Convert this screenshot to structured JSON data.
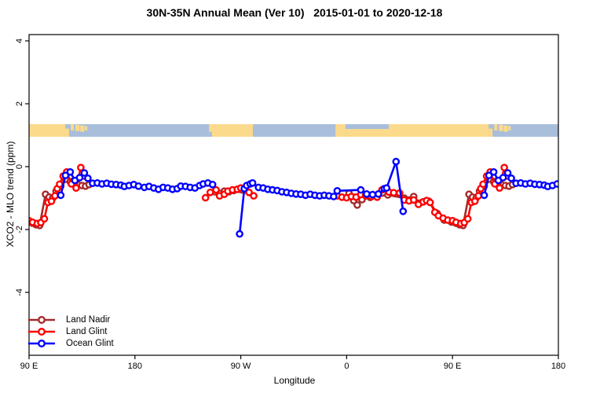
{
  "chart_data": {
    "type": "line",
    "title": "30N-35N Annual Mean (Ver 10)   2015-01-01 to 2020-12-18",
    "xlabel": "Longitude",
    "ylabel": "XCO2 - MLO trend (ppm)",
    "x_axis": {
      "min": 90,
      "max": 540,
      "note": "unwrapped longitude axis in degrees east; the 450-540 span repeats 90E-180",
      "ticks": [
        {
          "t": 90,
          "label": "90 E"
        },
        {
          "t": 180,
          "label": "180"
        },
        {
          "t": 270,
          "label": "90 W"
        },
        {
          "t": 360,
          "label": "0"
        },
        {
          "t": 450,
          "label": "90 E"
        },
        {
          "t": 540,
          "label": "180"
        }
      ]
    },
    "y_axis": {
      "min": -6.0,
      "max": 4.2,
      "ticks": [
        -4,
        -2,
        0,
        2,
        4
      ]
    },
    "grid": false,
    "legend_position": "bottom-left-inside",
    "series": [
      {
        "name": "Land Nadir",
        "color": "#A52A2A",
        "marker": "open-circle",
        "segments": [
          [
            [
              90,
              -1.75
            ],
            [
              93,
              -1.8
            ],
            [
              96,
              -1.85
            ],
            [
              99,
              -1.87
            ],
            [
              104,
              -0.88
            ],
            [
              107,
              -0.97
            ],
            [
              110,
              -1.0
            ],
            [
              113,
              -0.78
            ],
            [
              117,
              -0.62
            ],
            [
              121,
              -0.4
            ],
            [
              125,
              -0.48
            ],
            [
              128,
              -0.45
            ],
            [
              131,
              -0.55
            ],
            [
              135,
              -0.6
            ],
            [
              138,
              -0.62
            ],
            [
              141,
              -0.57
            ]
          ],
          [
            [
              248,
              -0.8
            ],
            [
              252,
              -0.85
            ],
            [
              256,
              -0.78
            ],
            [
              260,
              -0.8
            ],
            [
              264,
              -0.76
            ],
            [
              268,
              -0.72
            ],
            [
              271,
              -0.74
            ]
          ],
          [
            [
              362,
              -0.85
            ],
            [
              366,
              -1.08
            ],
            [
              369,
              -1.22
            ],
            [
              373,
              -1.05
            ],
            [
              380,
              -0.98
            ],
            [
              395,
              -0.9
            ],
            [
              409,
              -1.0
            ],
            [
              417,
              -0.95
            ],
            [
              422,
              -1.16
            ],
            [
              430,
              -1.1
            ],
            [
              437,
              -1.49
            ],
            [
              443,
              -1.7
            ],
            [
              449,
              -1.76
            ],
            [
              453,
              -1.8
            ],
            [
              456,
              -1.85
            ],
            [
              459,
              -1.87
            ],
            [
              464,
              -0.88
            ],
            [
              467,
              -0.97
            ],
            [
              470,
              -1.0
            ],
            [
              473,
              -0.78
            ],
            [
              477,
              -0.62
            ],
            [
              481,
              -0.4
            ],
            [
              485,
              -0.48
            ],
            [
              488,
              -0.45
            ],
            [
              491,
              -0.55
            ],
            [
              495,
              -0.6
            ],
            [
              498,
              -0.62
            ],
            [
              501,
              -0.57
            ]
          ]
        ]
      },
      {
        "name": "Land Glint",
        "color": "#FF0000",
        "marker": "open-circle",
        "segments": [
          [
            [
              90,
              -1.72
            ],
            [
              93,
              -1.77
            ],
            [
              97,
              -1.81
            ],
            [
              100,
              -1.78
            ],
            [
              103,
              -1.66
            ],
            [
              106,
              -1.14
            ],
            [
              109,
              -1.1
            ],
            [
              112,
              -0.93
            ],
            [
              114,
              -0.7
            ],
            [
              116,
              -0.56
            ],
            [
              119,
              -0.3
            ],
            [
              122,
              -0.17
            ],
            [
              126,
              -0.55
            ],
            [
              130,
              -0.68
            ],
            [
              134,
              -0.03
            ],
            [
              137,
              -0.3
            ]
          ],
          [
            [
              240,
              -0.99
            ],
            [
              244,
              -0.82
            ],
            [
              249,
              -0.74
            ],
            [
              252,
              -0.93
            ],
            [
              256,
              -0.88
            ],
            [
              259,
              -0.78
            ],
            [
              263,
              -0.74
            ],
            [
              267,
              -0.72
            ],
            [
              270,
              -0.68
            ],
            [
              274,
              -0.74
            ],
            [
              277,
              -0.82
            ],
            [
              281,
              -0.93
            ]
          ],
          [
            [
              352,
              -0.93
            ],
            [
              356,
              -0.97
            ],
            [
              360,
              -0.99
            ],
            [
              364,
              -0.95
            ],
            [
              368,
              -0.97
            ],
            [
              372,
              -0.89
            ],
            [
              376,
              -0.92
            ],
            [
              381,
              -0.95
            ],
            [
              386,
              -0.97
            ],
            [
              390,
              -0.74
            ],
            [
              396,
              -0.81
            ],
            [
              400,
              -0.83
            ],
            [
              405,
              -0.84
            ],
            [
              409,
              -1.06
            ],
            [
              413,
              -1.09
            ],
            [
              417,
              -1.06
            ],
            [
              421,
              -1.2
            ],
            [
              425,
              -1.12
            ],
            [
              428,
              -1.08
            ],
            [
              431,
              -1.14
            ],
            [
              435,
              -1.45
            ],
            [
              438,
              -1.56
            ],
            [
              442,
              -1.64
            ],
            [
              446,
              -1.7
            ],
            [
              450,
              -1.72
            ],
            [
              453,
              -1.77
            ],
            [
              457,
              -1.81
            ],
            [
              460,
              -1.78
            ],
            [
              463,
              -1.66
            ],
            [
              466,
              -1.14
            ],
            [
              469,
              -1.1
            ],
            [
              472,
              -0.93
            ],
            [
              474,
              -0.7
            ],
            [
              476,
              -0.56
            ],
            [
              479,
              -0.3
            ],
            [
              482,
              -0.17
            ],
            [
              486,
              -0.55
            ],
            [
              490,
              -0.68
            ],
            [
              494,
              -0.03
            ],
            [
              497,
              -0.3
            ]
          ]
        ]
      },
      {
        "name": "Ocean Glint",
        "color": "#0000FF",
        "marker": "open-circle",
        "segments": [
          [
            [
              117,
              -0.91
            ],
            [
              121,
              -0.28
            ],
            [
              125,
              -0.17
            ],
            [
              129,
              -0.44
            ],
            [
              133,
              -0.35
            ],
            [
              137,
              -0.2
            ],
            [
              140,
              -0.37
            ],
            [
              144,
              -0.53
            ],
            [
              148,
              -0.52
            ],
            [
              152,
              -0.55
            ],
            [
              156,
              -0.53
            ],
            [
              160,
              -0.56
            ],
            [
              164,
              -0.57
            ],
            [
              168,
              -0.59
            ],
            [
              171,
              -0.63
            ],
            [
              175,
              -0.6
            ],
            [
              179,
              -0.57
            ],
            [
              183,
              -0.62
            ],
            [
              188,
              -0.66
            ],
            [
              192,
              -0.63
            ],
            [
              196,
              -0.68
            ],
            [
              200,
              -0.72
            ],
            [
              204,
              -0.66
            ],
            [
              208,
              -0.68
            ],
            [
              212,
              -0.72
            ],
            [
              216,
              -0.7
            ],
            [
              219,
              -0.62
            ],
            [
              223,
              -0.63
            ],
            [
              227,
              -0.66
            ],
            [
              231,
              -0.68
            ],
            [
              235,
              -0.6
            ],
            [
              238,
              -0.55
            ],
            [
              242,
              -0.52
            ],
            [
              246,
              -0.57
            ]
          ],
          [
            [
              269,
              -2.14
            ],
            [
              273,
              -0.7
            ],
            [
              275,
              -0.6
            ],
            [
              278,
              -0.55
            ],
            [
              280,
              -0.52
            ],
            [
              285,
              -0.66
            ],
            [
              289,
              -0.68
            ],
            [
              293,
              -0.72
            ],
            [
              297,
              -0.74
            ],
            [
              301,
              -0.76
            ],
            [
              305,
              -0.8
            ],
            [
              309,
              -0.82
            ],
            [
              313,
              -0.85
            ],
            [
              317,
              -0.87
            ],
            [
              321,
              -0.88
            ],
            [
              325,
              -0.91
            ],
            [
              329,
              -0.88
            ],
            [
              333,
              -0.91
            ],
            [
              337,
              -0.93
            ],
            [
              341,
              -0.91
            ],
            [
              345,
              -0.93
            ],
            [
              349,
              -0.95
            ],
            [
              352,
              -0.77
            ],
            [
              372,
              -0.74
            ],
            [
              377,
              -0.87
            ],
            [
              382,
              -0.89
            ],
            [
              387,
              -0.87
            ],
            [
              392,
              -0.7
            ],
            [
              394,
              -0.68
            ],
            [
              402,
              0.16
            ],
            [
              408,
              -1.42
            ]
          ],
          [
            [
              477,
              -0.91
            ],
            [
              481,
              -0.28
            ],
            [
              485,
              -0.17
            ],
            [
              489,
              -0.44
            ],
            [
              493,
              -0.35
            ],
            [
              497,
              -0.2
            ],
            [
              500,
              -0.37
            ],
            [
              504,
              -0.53
            ],
            [
              508,
              -0.52
            ],
            [
              512,
              -0.55
            ],
            [
              516,
              -0.53
            ],
            [
              520,
              -0.56
            ],
            [
              524,
              -0.57
            ],
            [
              528,
              -0.59
            ],
            [
              531,
              -0.63
            ],
            [
              535,
              -0.6
            ],
            [
              539,
              -0.55
            ]
          ]
        ]
      }
    ],
    "map_strip": {
      "note": "thin 30N-35N world-map band drawn across the plot",
      "y_top": 1.35,
      "y_bottom": 0.95,
      "ocean_color": "#A9BEDB",
      "land_color": "#FBDA8B",
      "land_rects": [
        {
          "t0": 90,
          "t1": 120.7,
          "f0": 0,
          "f1": 1
        },
        {
          "t0": 120.7,
          "t1": 124,
          "f0": 0.35,
          "f1": 1
        },
        {
          "t0": 125.5,
          "t1": 128,
          "f0": 0,
          "f1": 0.5
        },
        {
          "t0": 129.5,
          "t1": 133,
          "f0": 0.05,
          "f1": 0.55
        },
        {
          "t0": 133.5,
          "t1": 137,
          "f0": 0.1,
          "f1": 0.6
        },
        {
          "t0": 137.5,
          "t1": 139.5,
          "f0": 0.15,
          "f1": 0.5
        },
        {
          "t0": 243,
          "t1": 280.3,
          "f0": 0,
          "f1": 1
        },
        {
          "t0": 350.5,
          "t1": 359,
          "f0": 0,
          "f1": 1
        },
        {
          "t0": 359,
          "t1": 395.8,
          "f0": 0.38,
          "f1": 1
        },
        {
          "t0": 395.8,
          "t1": 480.7,
          "f0": 0,
          "f1": 1
        },
        {
          "t0": 480.7,
          "t1": 484,
          "f0": 0.35,
          "f1": 1
        },
        {
          "t0": 485.5,
          "t1": 488,
          "f0": 0,
          "f1": 0.5
        },
        {
          "t0": 489.5,
          "t1": 493,
          "f0": 0.05,
          "f1": 0.55
        },
        {
          "t0": 493.5,
          "t1": 497,
          "f0": 0.1,
          "f1": 0.6
        },
        {
          "t0": 497.5,
          "t1": 499.5,
          "f0": 0.15,
          "f1": 0.5
        }
      ],
      "ocean_patches": [
        {
          "t0": 243,
          "t1": 245.5,
          "f0": 0.6,
          "f1": 1
        }
      ]
    }
  },
  "legend": {
    "items": [
      "Land Nadir",
      "Land Glint",
      "Ocean Glint"
    ]
  }
}
